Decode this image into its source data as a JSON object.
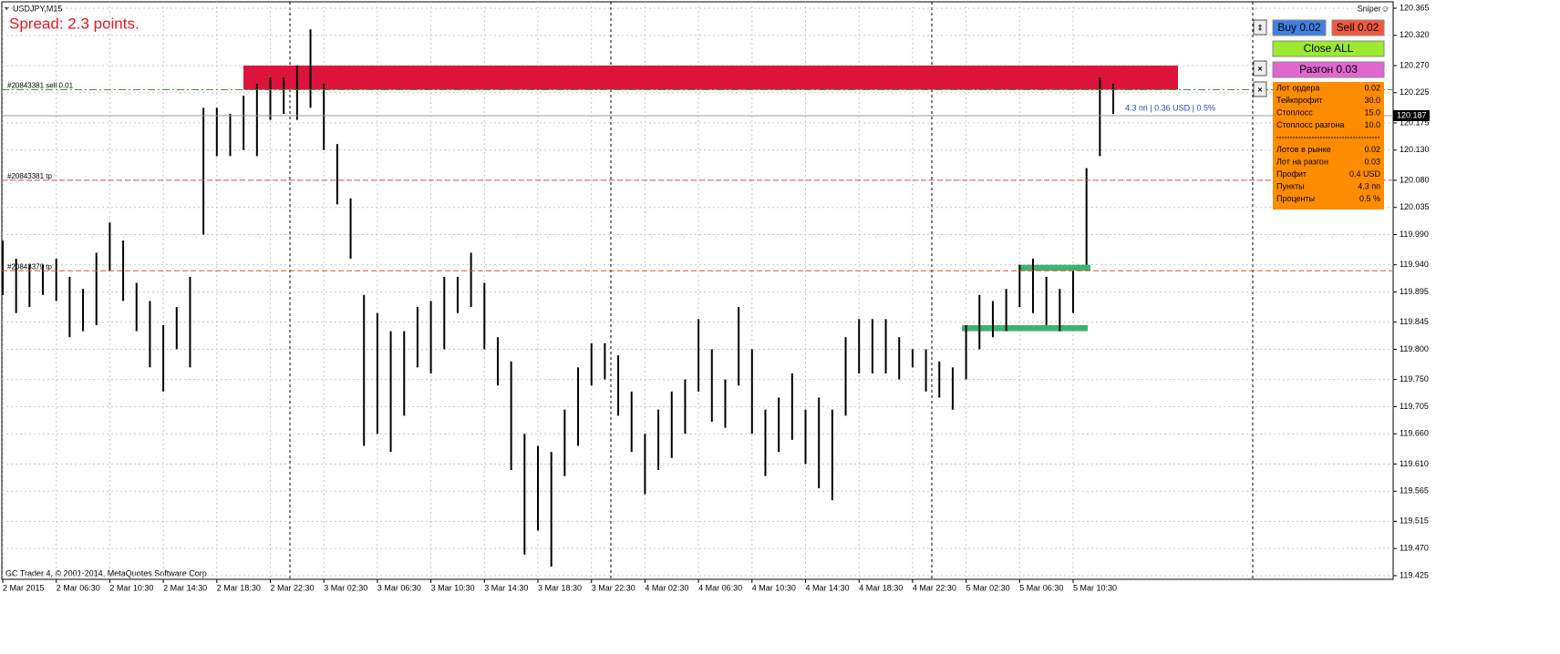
{
  "window_title": "USDJPY,M15",
  "spread": "Spread: 2.3 points.",
  "indicator": "Sniper☺",
  "footer": "GC Trader 4, © 2001-2014, MetaQuotes Software Corp.",
  "chart_data": {
    "type": "candlestick",
    "ylim": [
      119.425,
      120.365
    ],
    "yticks": [
      120.365,
      {
        "value": 120.32,
        "label": "120.320"
      },
      {
        "value": 120.27,
        "label": "120.270"
      },
      120.225,
      120.175,
      {
        "value": 120.13,
        "label": "120.130"
      },
      {
        "value": 120.08,
        "label": "120.080"
      },
      120.035,
      {
        "value": 119.99,
        "label": "119.990"
      },
      {
        "value": 119.94,
        "label": "119.940"
      },
      119.895,
      119.845,
      {
        "value": 119.8,
        "label": "119.800"
      },
      {
        "value": 119.75,
        "label": "119.750"
      },
      119.705,
      {
        "value": 119.66,
        "label": "119.660"
      },
      {
        "value": 119.61,
        "label": "119.610"
      },
      119.565,
      119.515,
      {
        "value": 119.47,
        "label": "119.470"
      },
      119.425
    ],
    "categories": [
      "2 Mar 2015",
      "2 Mar 06:30",
      "2 Mar 10:30",
      "2 Mar 14:30",
      "2 Mar 18:30",
      "2 Mar 22:30",
      "3 Mar 02:30",
      "3 Mar 06:30",
      "3 Mar 10:30",
      "3 Mar 14:30",
      "3 Mar 18:30",
      "3 Mar 22:30",
      "4 Mar 02:30",
      "4 Mar 06:30",
      "4 Mar 10:30",
      "4 Mar 14:30",
      "4 Mar 18:30",
      "4 Mar 22:30",
      "5 Mar 02:30",
      "5 Mar 06:30",
      "5 Mar 10:30"
    ],
    "color": "#000000",
    "bars": {
      "low": [
        119.89,
        119.86,
        119.87,
        119.89,
        119.88,
        119.82,
        119.83,
        119.84,
        119.93,
        119.88,
        119.83,
        119.77,
        119.73,
        119.8,
        119.77,
        119.99,
        120.12,
        120.12,
        120.13,
        120.12,
        120.18,
        120.19,
        120.18,
        120.2,
        120.13,
        120.04,
        119.95,
        119.64,
        119.66,
        119.63,
        119.69,
        119.77,
        119.76,
        119.8,
        119.86,
        119.87,
        119.8,
        119.74,
        119.6,
        119.46,
        119.5,
        119.44,
        119.59,
        119.64,
        119.74,
        119.75,
        119.69,
        119.63,
        119.56,
        119.6,
        119.62,
        119.66,
        119.73,
        119.68,
        119.67,
        119.74,
        119.66,
        119.59,
        119.63,
        119.65,
        119.61,
        119.57,
        119.55,
        119.69,
        119.76,
        119.76,
        119.76,
        119.75,
        119.77,
        119.73,
        119.72,
        119.7,
        119.75,
        119.8,
        119.82,
        119.83,
        119.87,
        119.86,
        119.84,
        119.83,
        119.86,
        119.94,
        120.12,
        120.19
      ],
      "high": [
        119.98,
        119.95,
        119.94,
        119.94,
        119.95,
        119.92,
        119.9,
        119.96,
        120.01,
        119.98,
        119.91,
        119.88,
        119.84,
        119.87,
        119.92,
        120.2,
        120.2,
        120.19,
        120.22,
        120.24,
        120.25,
        120.25,
        120.27,
        120.33,
        120.24,
        120.14,
        120.05,
        119.89,
        119.86,
        119.83,
        119.83,
        119.87,
        119.88,
        119.92,
        119.92,
        119.96,
        119.91,
        119.82,
        119.78,
        119.66,
        119.64,
        119.63,
        119.7,
        119.77,
        119.81,
        119.81,
        119.79,
        119.73,
        119.66,
        119.7,
        119.73,
        119.75,
        119.85,
        119.8,
        119.75,
        119.87,
        119.8,
        119.7,
        119.72,
        119.76,
        119.7,
        119.72,
        119.7,
        119.82,
        119.85,
        119.85,
        119.85,
        119.82,
        119.8,
        119.8,
        119.78,
        119.77,
        119.84,
        119.89,
        119.88,
        119.9,
        119.94,
        119.95,
        119.92,
        119.9,
        119.93,
        120.1,
        120.25,
        120.24
      ]
    },
    "levels": [
      {
        "label": "#20843381 sell 0.01",
        "value": 120.23,
        "color": "#2ca02c"
      },
      {
        "label": "#20843381 tp",
        "value": 120.08,
        "color": "#e0502a"
      },
      {
        "label": "#20843379 tp",
        "value": 119.93,
        "color": "#e0502a"
      }
    ],
    "current_price": 120.187,
    "zones": [
      {
        "low": 120.23,
        "high": 120.27,
        "color": "#dc143c"
      },
      {
        "low": 119.93,
        "high": 119.94,
        "color": "#3cb371"
      },
      {
        "low": 119.83,
        "high": 119.84,
        "color": "#3cb371"
      }
    ],
    "info": "4.3 пп | 0.36 USD | 0.5%"
  },
  "panel": {
    "buy": "Buy 0.02",
    "sell": "Sell 0.02",
    "close": "Close ALL",
    "boost": "Разгон 0.03",
    "rows": [
      [
        "Лот ордера",
        "0.02"
      ],
      [
        "Тейкпрофит",
        "30.0"
      ],
      [
        "Стоплосс",
        "15.0"
      ],
      [
        "Стоплосс разгона",
        "10.0"
      ],
      [
        "Лотов в рынке",
        "0.02"
      ],
      [
        "Лот на разгон",
        "0.03"
      ],
      [
        "Профит",
        "0.4 USD"
      ],
      [
        "Пункты",
        "4.3 пп"
      ],
      [
        "Проценты",
        "0.5 %"
      ]
    ]
  }
}
